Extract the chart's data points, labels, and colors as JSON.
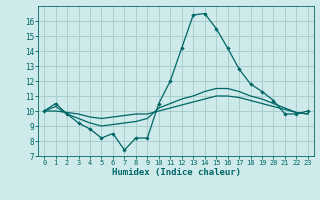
{
  "xlabel": "Humidex (Indice chaleur)",
  "ylabel": "",
  "background_color": "#ceeaea",
  "grid_color": "#aacece",
  "line_color": "#006666",
  "xlim": [
    -0.5,
    23.5
  ],
  "ylim": [
    7,
    17
  ],
  "yticks": [
    7,
    8,
    9,
    10,
    11,
    12,
    13,
    14,
    15,
    16
  ],
  "xticks": [
    0,
    1,
    2,
    3,
    4,
    5,
    6,
    7,
    8,
    9,
    10,
    11,
    12,
    13,
    14,
    15,
    16,
    17,
    18,
    19,
    20,
    21,
    22,
    23
  ],
  "series": [
    {
      "x": [
        0,
        1,
        2,
        3,
        4,
        5,
        6,
        7,
        8,
        9,
        10,
        11,
        12,
        13,
        14,
        15,
        16,
        17,
        18,
        19,
        20,
        21,
        22,
        23
      ],
      "y": [
        10.0,
        10.5,
        9.8,
        9.2,
        8.8,
        8.2,
        8.5,
        7.4,
        8.2,
        8.2,
        10.5,
        12.0,
        14.2,
        16.4,
        16.5,
        15.5,
        14.2,
        12.8,
        11.8,
        11.3,
        10.7,
        9.8,
        9.8,
        10.0
      ],
      "marker": true
    },
    {
      "x": [
        0,
        1,
        2,
        3,
        4,
        5,
        6,
        7,
        8,
        9,
        10,
        11,
        12,
        13,
        14,
        15,
        16,
        17,
        18,
        19,
        20,
        21,
        22,
        23
      ],
      "y": [
        10.0,
        10.3,
        9.8,
        9.5,
        9.2,
        9.0,
        9.1,
        9.2,
        9.3,
        9.5,
        10.2,
        10.5,
        10.8,
        11.0,
        11.3,
        11.5,
        11.5,
        11.3,
        11.0,
        10.8,
        10.5,
        10.2,
        9.9,
        9.8
      ],
      "marker": false
    },
    {
      "x": [
        0,
        1,
        2,
        3,
        4,
        5,
        6,
        7,
        8,
        9,
        10,
        11,
        12,
        13,
        14,
        15,
        16,
        17,
        18,
        19,
        20,
        21,
        22,
        23
      ],
      "y": [
        10.0,
        10.0,
        9.9,
        9.8,
        9.6,
        9.5,
        9.6,
        9.7,
        9.8,
        9.8,
        10.0,
        10.2,
        10.4,
        10.6,
        10.8,
        11.0,
        11.0,
        10.9,
        10.7,
        10.5,
        10.3,
        10.1,
        9.9,
        9.8
      ],
      "marker": false
    }
  ]
}
